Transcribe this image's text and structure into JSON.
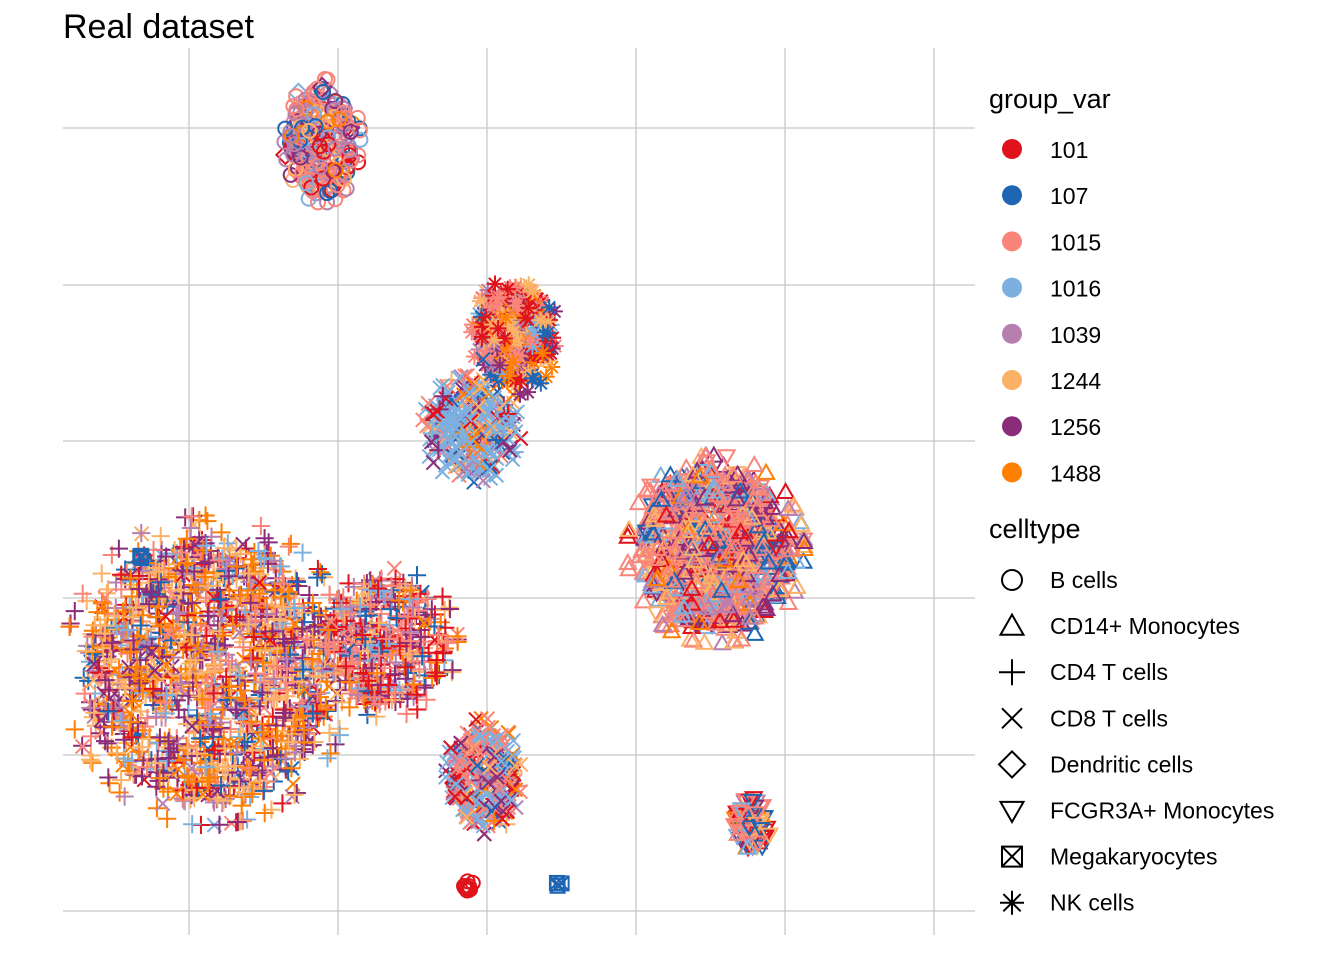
{
  "chart_data": {
    "type": "scatter",
    "title": "Real dataset",
    "xlabel": "",
    "ylabel": "",
    "grid": true,
    "axis_ticks_shown": false,
    "legend_position": "right",
    "legends": [
      {
        "title": "group_var",
        "kind": "color",
        "entries": [
          {
            "label": "101",
            "color": "#e0121c"
          },
          {
            "label": "107",
            "color": "#1f66b2"
          },
          {
            "label": "1015",
            "color": "#f9857a"
          },
          {
            "label": "1016",
            "color": "#7cb0e0"
          },
          {
            "label": "1039",
            "color": "#b67fb0"
          },
          {
            "label": "1244",
            "color": "#fbb266"
          },
          {
            "label": "1256",
            "color": "#8a2c7a"
          },
          {
            "label": "1488",
            "color": "#ff7f00"
          }
        ]
      },
      {
        "title": "celltype",
        "kind": "shape",
        "entries": [
          {
            "label": "B cells",
            "shape": "circle"
          },
          {
            "label": "CD14+ Monocytes",
            "shape": "triangle-up"
          },
          {
            "label": "CD4 T cells",
            "shape": "plus"
          },
          {
            "label": "CD8 T cells",
            "shape": "cross"
          },
          {
            "label": "Dendritic cells",
            "shape": "diamond"
          },
          {
            "label": "FCGR3A+ Monocytes",
            "shape": "triangle-down"
          },
          {
            "label": "Megakaryocytes",
            "shape": "square-cross"
          },
          {
            "label": "NK cells",
            "shape": "asterisk"
          }
        ]
      }
    ],
    "clusters": [
      {
        "celltype": "B cells",
        "cx": 0.9,
        "cy": 8.4,
        "rx": 0.42,
        "ry": 0.58,
        "n": 260,
        "secondary_shape": "diamond",
        "weights": {
          "101": 0.1,
          "107": 0.14,
          "1015": 0.3,
          "1016": 0.06,
          "1039": 0.16,
          "1244": 0.1,
          "1256": 0.1,
          "1488": 0.04
        }
      },
      {
        "celltype": "CD4 T cells",
        "cx": -0.55,
        "cy": 2.7,
        "rx": 1.6,
        "ry": 1.45,
        "n": 1500,
        "secondary_shape": "cross",
        "weights": {
          "101": 0.06,
          "107": 0.05,
          "1015": 0.12,
          "1016": 0.06,
          "1039": 0.08,
          "1244": 0.2,
          "1256": 0.2,
          "1488": 0.23
        }
      },
      {
        "celltype": "CD4 T cells",
        "cx": 1.7,
        "cy": 3.0,
        "rx": 0.8,
        "ry": 0.7,
        "n": 420,
        "secondary_shape": "cross",
        "weights": {
          "101": 0.18,
          "107": 0.06,
          "1015": 0.28,
          "1016": 0.06,
          "1039": 0.06,
          "1244": 0.14,
          "1256": 0.14,
          "1488": 0.08
        }
      },
      {
        "celltype": "CD8 T cells",
        "cx": 2.95,
        "cy": 1.55,
        "rx": 0.42,
        "ry": 0.55,
        "n": 300,
        "secondary_shape": "plus",
        "weights": {
          "101": 0.1,
          "107": 0.08,
          "1015": 0.3,
          "1016": 0.26,
          "1039": 0.06,
          "1244": 0.06,
          "1256": 0.1,
          "1488": 0.04
        }
      },
      {
        "celltype": "CD8 T cells",
        "cx": 2.8,
        "cy": 5.3,
        "rx": 0.55,
        "ry": 0.5,
        "n": 330,
        "secondary_shape": "plus",
        "weights": {
          "101": 0.06,
          "107": 0.06,
          "1015": 0.08,
          "1016": 0.5,
          "1039": 0.08,
          "1244": 0.06,
          "1256": 0.12,
          "1488": 0.04
        }
      },
      {
        "celltype": "NK cells",
        "cx": 3.35,
        "cy": 6.3,
        "rx": 0.48,
        "ry": 0.55,
        "n": 320,
        "secondary_shape": "cross",
        "weights": {
          "101": 0.14,
          "107": 0.08,
          "1015": 0.26,
          "1016": 0.06,
          "1039": 0.06,
          "1244": 0.18,
          "1256": 0.12,
          "1488": 0.1
        }
      },
      {
        "celltype": "CD14+ Monocytes",
        "cx": 5.9,
        "cy": 4.0,
        "rx": 0.98,
        "ry": 0.88,
        "n": 900,
        "secondary_shape": "triangle-down",
        "weights": {
          "101": 0.08,
          "107": 0.08,
          "1015": 0.36,
          "1016": 0.08,
          "1039": 0.08,
          "1244": 0.16,
          "1256": 0.12,
          "1488": 0.04
        }
      },
      {
        "celltype": "FCGR3A+ Monocytes",
        "cx": 6.35,
        "cy": 1.05,
        "rx": 0.22,
        "ry": 0.28,
        "n": 90,
        "secondary_shape": "triangle-up",
        "weights": {
          "101": 0.18,
          "107": 0.1,
          "1015": 0.3,
          "1016": 0.14,
          "1039": 0.06,
          "1244": 0.12,
          "1256": 0.06,
          "1488": 0.04
        }
      },
      {
        "celltype": "Megakaryocytes",
        "cx": -1.4,
        "cy": 3.95,
        "rx": 0.05,
        "ry": 0.05,
        "n": 3,
        "secondary_shape": "square-cross",
        "weights": {
          "107": 1.0
        }
      },
      {
        "celltype": "Megakaryocytes",
        "cx": 3.9,
        "cy": 0.4,
        "rx": 0.05,
        "ry": 0.05,
        "n": 3,
        "secondary_shape": "square-cross",
        "weights": {
          "107": 1.0
        }
      },
      {
        "celltype": "B cells",
        "cx": 2.75,
        "cy": 0.38,
        "rx": 0.06,
        "ry": 0.06,
        "n": 12,
        "secondary_shape": "circle",
        "weights": {
          "101": 1.0
        }
      }
    ],
    "xlim": [
      -2.4,
      9.2
    ],
    "ylim": [
      -0.15,
      9.4
    ]
  }
}
